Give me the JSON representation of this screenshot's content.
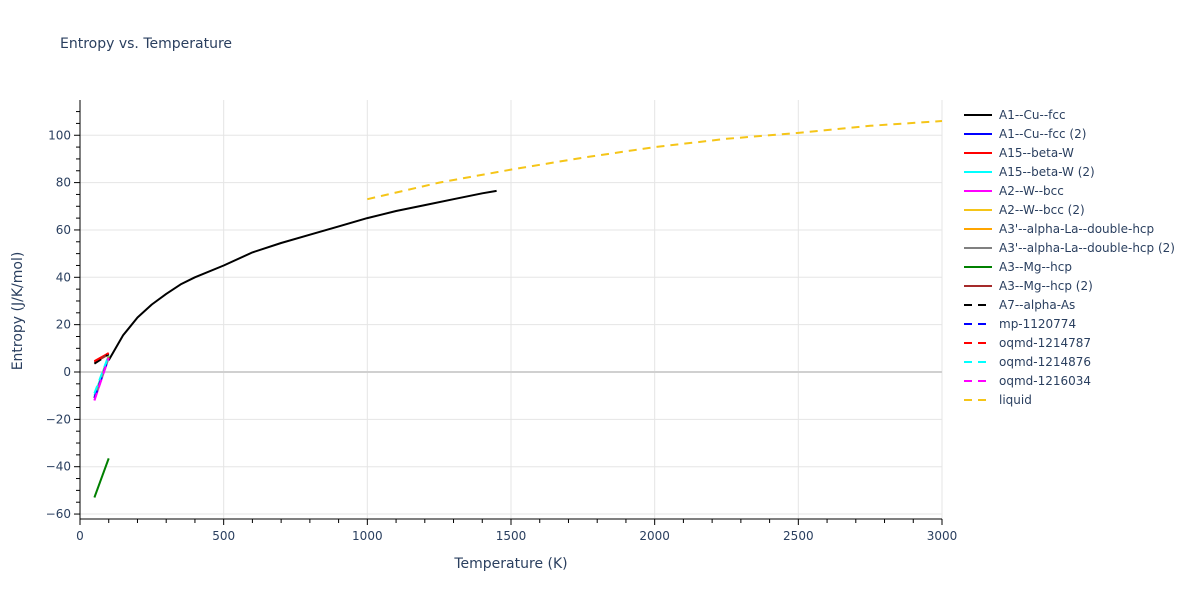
{
  "title": "Entropy vs. Temperature",
  "chart_data": {
    "type": "line",
    "title": "Entropy vs. Temperature",
    "xlabel": "Temperature (K)",
    "ylabel": "Entropy (J/K/mol)",
    "xlim": [
      0,
      3000
    ],
    "ylim": [
      -62,
      115
    ],
    "xticks": [
      0,
      500,
      1000,
      1500,
      2000,
      2500,
      3000
    ],
    "yticks": [
      -60,
      -40,
      -20,
      0,
      20,
      40,
      60,
      80,
      100
    ],
    "grid": true,
    "legend_position": "right",
    "series": [
      {
        "name": "A1--Cu--fcc",
        "color": "#000000",
        "dash": "solid",
        "x": [
          100,
          150,
          200,
          250,
          300,
          350,
          400,
          500,
          600,
          700,
          800,
          900,
          1000,
          1100,
          1200,
          1300,
          1400,
          1450
        ],
        "y": [
          5,
          15.5,
          23,
          28.5,
          33,
          37,
          40,
          45,
          50.5,
          54.5,
          58,
          61.5,
          65,
          68,
          70.5,
          73,
          75.5,
          76.5
        ]
      },
      {
        "name": "A1--Cu--fcc (2)",
        "color": "#0000ff",
        "dash": "solid",
        "x": [
          50,
          100
        ],
        "y": [
          -11,
          6
        ]
      },
      {
        "name": "A15--beta-W",
        "color": "#ff0000",
        "dash": "solid",
        "x": [
          50,
          100
        ],
        "y": [
          4.5,
          8
        ]
      },
      {
        "name": "A15--beta-W (2)",
        "color": "#00ffff",
        "dash": "solid",
        "x": [
          50,
          100
        ],
        "y": [
          -10,
          7
        ]
      },
      {
        "name": "A2--W--bcc",
        "color": "#ff00ff",
        "dash": "solid",
        "x": [
          50,
          100
        ],
        "y": [
          -12,
          6
        ]
      },
      {
        "name": "A2--W--bcc (2)",
        "color": "#f5c518",
        "dash": "solid",
        "x": [
          50,
          100
        ],
        "y": [
          -11,
          6.5
        ]
      },
      {
        "name": "A3'--alpha-La--double-hcp",
        "color": "#ffa500",
        "dash": "solid",
        "x": [
          50,
          100
        ],
        "y": [
          -11,
          6.5
        ]
      },
      {
        "name": "A3'--alpha-La--double-hcp (2)",
        "color": "#808080",
        "dash": "solid",
        "x": [
          50,
          100
        ],
        "y": [
          -11,
          6
        ]
      },
      {
        "name": "A3--Mg--hcp",
        "color": "#008000",
        "dash": "solid",
        "x": [
          50,
          100
        ],
        "y": [
          -53,
          -36.5
        ]
      },
      {
        "name": "A3--Mg--hcp (2)",
        "color": "#a52a2a",
        "dash": "solid",
        "x": [
          50,
          100
        ],
        "y": [
          4,
          7.5
        ]
      },
      {
        "name": "A7--alpha-As",
        "color": "#000000",
        "dash": "dash",
        "x": [
          50,
          100
        ],
        "y": [
          3.5,
          7.5
        ]
      },
      {
        "name": "mp-1120774",
        "color": "#0000ff",
        "dash": "dash",
        "x": [
          50,
          100
        ],
        "y": [
          -11,
          6
        ]
      },
      {
        "name": "oqmd-1214787",
        "color": "#ff0000",
        "dash": "dash",
        "x": [
          50,
          100
        ],
        "y": [
          4.5,
          8
        ]
      },
      {
        "name": "oqmd-1214876",
        "color": "#00ffff",
        "dash": "dash",
        "x": [
          50,
          100
        ],
        "y": [
          -9,
          7
        ]
      },
      {
        "name": "oqmd-1216034",
        "color": "#ff00ff",
        "dash": "dash",
        "x": [
          50,
          100
        ],
        "y": [
          -12,
          6
        ]
      },
      {
        "name": "liquid",
        "color": "#f5c518",
        "dash": "dash",
        "x": [
          1000,
          1250,
          1500,
          1750,
          2000,
          2250,
          2500,
          2750,
          3000
        ],
        "y": [
          73,
          80,
          85.5,
          90.5,
          95,
          98.5,
          101,
          104,
          106
        ]
      }
    ]
  }
}
